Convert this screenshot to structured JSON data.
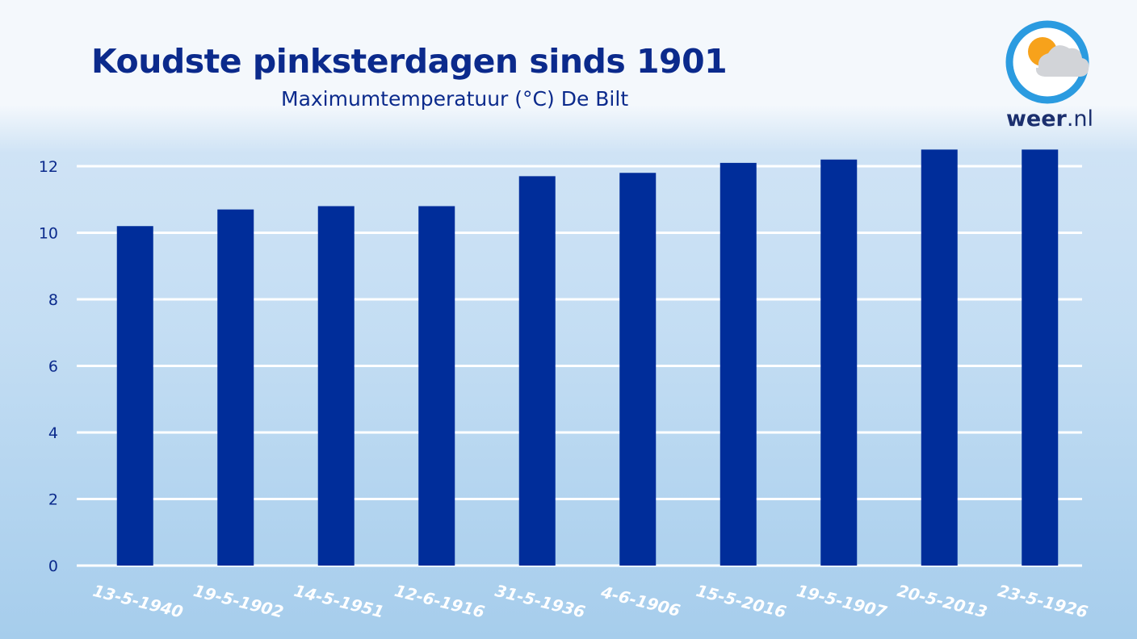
{
  "chart_data": {
    "type": "bar",
    "title": "Koudste pinksterdagen sinds 1901",
    "subtitle": "Maximumtemperatuur (°C) De Bilt",
    "categories": [
      "13-5-1940",
      "19-5-1902",
      "14-5-1951",
      "12-6-1916",
      "31-5-1936",
      "4-6-1906",
      "15-5-2016",
      "19-5-1907",
      "20-5-2013",
      "23-5-1926"
    ],
    "values": [
      10.2,
      10.7,
      10.8,
      10.8,
      11.7,
      11.8,
      12.1,
      12.2,
      12.5,
      12.5
    ],
    "yticks": [
      0,
      2,
      4,
      6,
      8,
      10,
      12
    ],
    "ylim": [
      0,
      12.5
    ],
    "grid": true,
    "bar_color": "#002d9a",
    "grid_color": "#ffffff"
  },
  "logo": {
    "brand": "weer",
    "suffix": ".nl",
    "icon": "sun-cloud-icon"
  }
}
